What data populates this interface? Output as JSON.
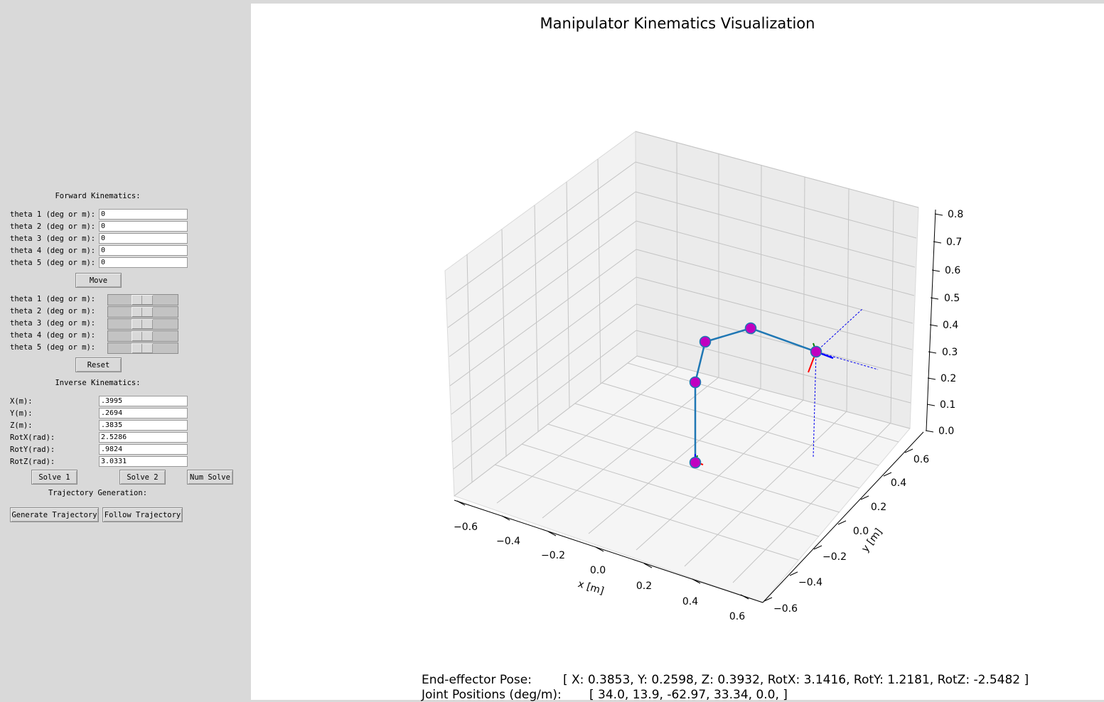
{
  "left_panel": {
    "forward_header": "Forward Kinematics:",
    "theta_labels": [
      "theta 1 (deg or m):",
      "theta 2 (deg or m):",
      "theta 3 (deg or m):",
      "theta 4 (deg or m):",
      "theta 5 (deg or m):"
    ],
    "theta_values": [
      "0",
      "0",
      "0",
      "0",
      "0"
    ],
    "move_label": "Move",
    "slider_labels": [
      "theta 1 (deg or m):",
      "theta 2 (deg or m):",
      "theta 3 (deg or m):",
      "theta 4 (deg or m):",
      "theta 5 (deg or m):"
    ],
    "reset_label": "Reset",
    "inverse_header": "Inverse Kinematics:",
    "ik_labels": [
      "X(m):",
      "Y(m):",
      "Z(m):",
      "RotX(rad):",
      "RotY(rad):",
      "RotZ(rad):"
    ],
    "ik_values": [
      ".3995",
      ".2694",
      ".3835",
      "2.5286",
      ".9824",
      "3.0331"
    ],
    "solve1_label": "Solve 1",
    "solve2_label": "Solve 2",
    "num_solve_label": "Num Solve",
    "trajectory_header": "Trajectory Generation:",
    "generate_label": "Generate Trajectory",
    "follow_label": "Follow Trajectory"
  },
  "plot": {
    "title": "Manipulator Kinematics Visualization",
    "xlabel": "x [m]",
    "ylabel": "y [m]",
    "x_ticks": [
      "−0.6",
      "−0.4",
      "−0.2",
      "0.0",
      "0.2",
      "0.4",
      "0.6"
    ],
    "y_ticks": [
      "−0.6",
      "−0.4",
      "−0.2",
      "0.0",
      "0.2",
      "0.4",
      "0.6"
    ],
    "z_ticks": [
      "0.0",
      "0.1",
      "0.2",
      "0.3",
      "0.4",
      "0.5",
      "0.6",
      "0.7",
      "0.8"
    ],
    "link_color": "#1f77b4",
    "joint_color": "#c000c0"
  },
  "status": {
    "pose_label": "End-effector Pose:",
    "pose_value": "[ X: 0.3853,  Y: 0.2598,  Z: 0.3932,  RotX: 3.1416,  RotY: 1.2181,  RotZ: -2.5482   ]",
    "joints_label": "Joint Positions (deg/m):",
    "joints_value": "[ 34.0,  13.9,  -62.97,  33.34,  0.0,  ]"
  }
}
